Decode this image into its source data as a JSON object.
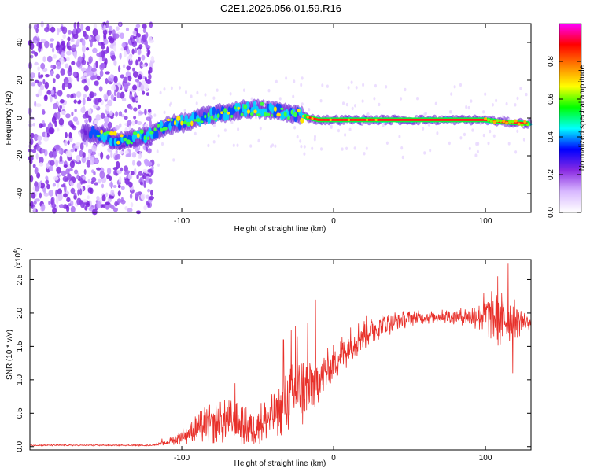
{
  "title": "C2E1.2026.056.01.59.R16",
  "chart_data": [
    {
      "type": "heatmap",
      "name": "spectrogram",
      "xlabel": "Height of straight line (km)",
      "ylabel": "Frequency (Hz)",
      "xlim": [
        -200,
        130
      ],
      "ylim": [
        -50,
        50
      ],
      "xticks": [
        -100,
        0,
        100
      ],
      "yticks": [
        -40,
        -20,
        0,
        20,
        40
      ],
      "xtick_labels": [
        "-100",
        "0",
        "100"
      ],
      "ytick_labels": [
        "-40",
        "-20",
        "0",
        "20",
        "40"
      ],
      "colorbar": {
        "label": "Normalized spectral amplitude",
        "range": [
          0,
          1
        ],
        "ticks": [
          0.0,
          0.2,
          0.4,
          0.6,
          0.8
        ],
        "tick_labels": [
          "0.0",
          "0.2",
          "0.4",
          "0.6",
          "0.8"
        ],
        "colormap": [
          "#ffffff",
          "#d8b8ff",
          "#8a2be2",
          "#0000ff",
          "#00ffff",
          "#00ff00",
          "#ffff00",
          "#ff8000",
          "#ff0000",
          "#ff00ff"
        ]
      },
      "noise_region": {
        "x_start": -200,
        "x_end": -119
      },
      "ridge": [
        {
          "x": -160,
          "f": -8
        },
        {
          "x": -140,
          "f": -12
        },
        {
          "x": -120,
          "f": -9
        },
        {
          "x": -110,
          "f": -4
        },
        {
          "x": -95,
          "f": -2
        },
        {
          "x": -85,
          "f": 1
        },
        {
          "x": -70,
          "f": 3
        },
        {
          "x": -55,
          "f": 5
        },
        {
          "x": -40,
          "f": 4
        },
        {
          "x": -25,
          "f": 2
        },
        {
          "x": -10,
          "f": -1
        },
        {
          "x": 0,
          "f": -1
        },
        {
          "x": 30,
          "f": -1
        },
        {
          "x": 100,
          "f": -1
        },
        {
          "x": 110,
          "f": -2
        },
        {
          "x": 130,
          "f": -3
        }
      ]
    },
    {
      "type": "line",
      "name": "snr",
      "xlabel": "Height of straight line (km)",
      "ylabel": "SNR (10 * v/v)",
      "scale_label": "(x10",
      "scale_exponent": "4",
      "scale_close": ")",
      "color": "#e8302a",
      "xlim": [
        -200,
        130
      ],
      "ylim": [
        -0.05,
        2.8
      ],
      "xticks": [
        -100,
        0,
        100
      ],
      "yticks": [
        0.0,
        0.5,
        1.0,
        1.5,
        2.0,
        2.5
      ],
      "xtick_labels": [
        "-100",
        "0",
        "100"
      ],
      "ytick_labels": [
        "0.0",
        "0.5",
        "1.0",
        "1.5",
        "2.0",
        "2.5"
      ],
      "envelope": [
        {
          "x": -200,
          "mean": 0.02,
          "noise": 0.01
        },
        {
          "x": -120,
          "mean": 0.02,
          "noise": 0.01
        },
        {
          "x": -110,
          "mean": 0.06,
          "noise": 0.04
        },
        {
          "x": -100,
          "mean": 0.15,
          "noise": 0.12
        },
        {
          "x": -85,
          "mean": 0.32,
          "noise": 0.28
        },
        {
          "x": -70,
          "mean": 0.38,
          "noise": 0.35
        },
        {
          "x": -55,
          "mean": 0.28,
          "noise": 0.3
        },
        {
          "x": -40,
          "mean": 0.45,
          "noise": 0.35
        },
        {
          "x": -25,
          "mean": 0.8,
          "noise": 0.55
        },
        {
          "x": -15,
          "mean": 0.85,
          "noise": 0.6
        },
        {
          "x": -8,
          "mean": 1.05,
          "noise": 0.35
        },
        {
          "x": 0,
          "mean": 1.25,
          "noise": 0.3
        },
        {
          "x": 10,
          "mean": 1.5,
          "noise": 0.3
        },
        {
          "x": 20,
          "mean": 1.7,
          "noise": 0.25
        },
        {
          "x": 35,
          "mean": 1.85,
          "noise": 0.2
        },
        {
          "x": 50,
          "mean": 1.92,
          "noise": 0.12
        },
        {
          "x": 70,
          "mean": 1.95,
          "noise": 0.1
        },
        {
          "x": 90,
          "mean": 1.95,
          "noise": 0.15
        },
        {
          "x": 100,
          "mean": 2.0,
          "noise": 0.35
        },
        {
          "x": 110,
          "mean": 1.9,
          "noise": 0.45
        },
        {
          "x": 120,
          "mean": 1.9,
          "noise": 0.3
        },
        {
          "x": 130,
          "mean": 1.85,
          "noise": 0.1
        }
      ],
      "peaks": [
        {
          "x": -113,
          "y": 0.12
        },
        {
          "x": -65,
          "y": 0.95
        },
        {
          "x": -33,
          "y": 1.6
        },
        {
          "x": -28,
          "y": 1.75
        },
        {
          "x": -25,
          "y": 1.8
        },
        {
          "x": -24,
          "y": 1.65
        },
        {
          "x": -17,
          "y": 1.85
        },
        {
          "x": -12,
          "y": 2.2
        },
        {
          "x": 108,
          "y": 2.55
        },
        {
          "x": 115,
          "y": 2.75
        },
        {
          "x": 118,
          "y": 1.1
        }
      ]
    }
  ]
}
